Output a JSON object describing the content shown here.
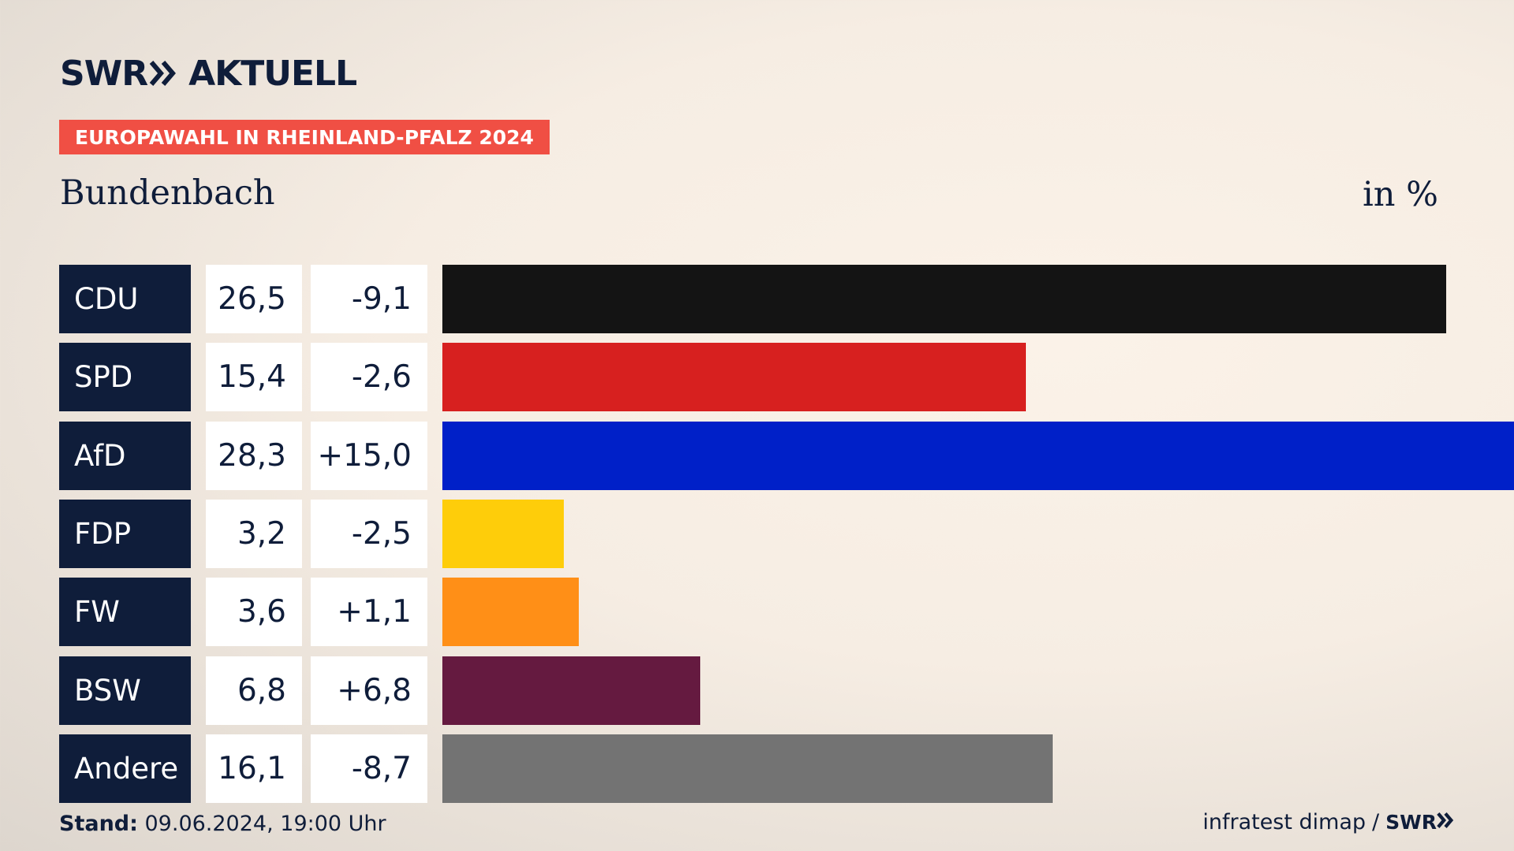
{
  "header": {
    "logo_swr": "SWR",
    "logo_aktuell": "AKTUELL",
    "badge": "EUROPAWAHL IN RHEINLAND-PFALZ 2024",
    "location": "Bundenbach",
    "unit": "in %"
  },
  "colors": {
    "navy": "#0f1d3a",
    "badge": "#f04f44"
  },
  "chart_data": {
    "type": "bar",
    "orientation": "horizontal",
    "categories": [
      "CDU",
      "SPD",
      "AfD",
      "FDP",
      "FW",
      "BSW",
      "Andere"
    ],
    "values": [
      26.5,
      15.4,
      28.3,
      3.2,
      3.6,
      6.8,
      16.1
    ],
    "value_labels": [
      "26,5",
      "15,4",
      "28,3",
      "3,2",
      "3,6",
      "6,8",
      "16,1"
    ],
    "changes": [
      -9.1,
      -2.6,
      15.0,
      -2.5,
      1.1,
      6.8,
      -8.7
    ],
    "change_labels": [
      "-9,1",
      "-2,6",
      "+15,0",
      "-2,5",
      "+1,1",
      "+6,8",
      "-8,7"
    ],
    "bar_colors": [
      "#141414",
      "#d7201f",
      "#0020c8",
      "#fecd0a",
      "#ff8f17",
      "#651a40",
      "#737373"
    ],
    "xlim": [
      0,
      28.3
    ],
    "unit": "in %"
  },
  "footer": {
    "stand_label": "Stand:",
    "stand_value": " 09.06.2024, 19:00 Uhr",
    "source": "infratest dimap",
    "slash": "/",
    "swr": "SWR"
  }
}
